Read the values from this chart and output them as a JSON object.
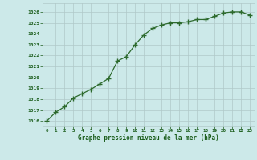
{
  "x": [
    0,
    1,
    2,
    3,
    4,
    5,
    6,
    7,
    8,
    9,
    10,
    11,
    12,
    13,
    14,
    15,
    16,
    17,
    18,
    19,
    20,
    21,
    22,
    23
  ],
  "y": [
    1016.0,
    1016.8,
    1017.3,
    1018.1,
    1018.5,
    1018.9,
    1019.4,
    1019.9,
    1021.5,
    1021.9,
    1023.0,
    1023.9,
    1024.5,
    1024.8,
    1025.0,
    1025.0,
    1025.1,
    1025.3,
    1025.3,
    1025.6,
    1025.9,
    1026.0,
    1026.0,
    1025.7
  ],
  "line_color": "#2d6a2d",
  "marker": "+",
  "bg_color": "#cce9e9",
  "grid_color": "#b0c8c8",
  "xlabel": "Graphe pression niveau de la mer (hPa)",
  "xlabel_color": "#1a5c1a",
  "tick_color": "#1a5c1a",
  "ylim": [
    1015.5,
    1026.8
  ],
  "xlim": [
    -0.5,
    23.5
  ],
  "yticks": [
    1016,
    1017,
    1018,
    1019,
    1020,
    1021,
    1022,
    1023,
    1024,
    1025,
    1026
  ],
  "xticks": [
    0,
    1,
    2,
    3,
    4,
    5,
    6,
    7,
    8,
    9,
    10,
    11,
    12,
    13,
    14,
    15,
    16,
    17,
    18,
    19,
    20,
    21,
    22,
    23
  ]
}
